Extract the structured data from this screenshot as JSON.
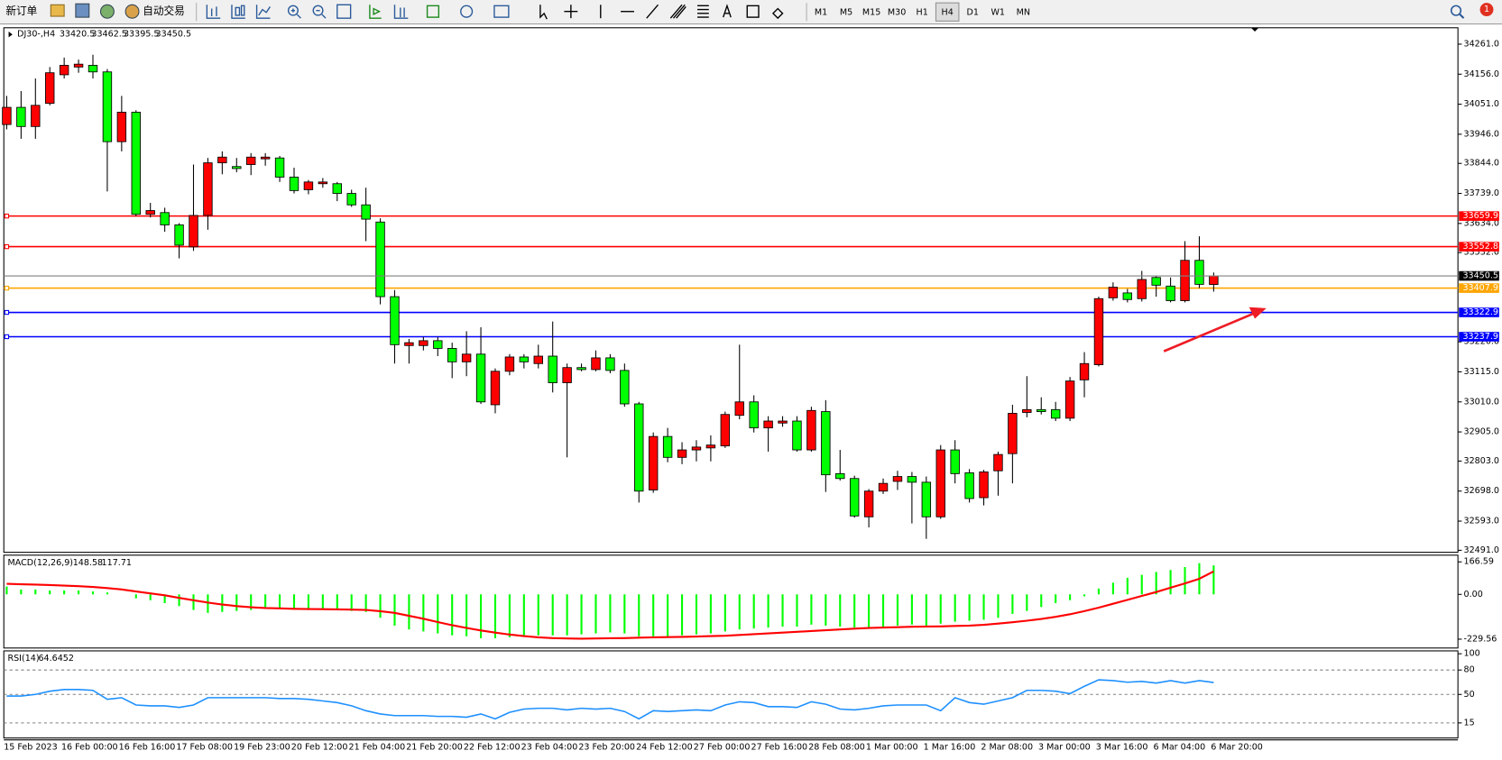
{
  "toolbar": {
    "new_order": "新订单",
    "auto_trading": "自动交易",
    "timeframes": [
      "M1",
      "M5",
      "M15",
      "M30",
      "H1",
      "H4",
      "D1",
      "W1",
      "MN"
    ],
    "active_timeframe": 5,
    "notifications": 1
  },
  "chart_data": [
    {
      "type": "candlestick",
      "title": "DJ30-,H4",
      "categories": [
        "15 Feb 2023",
        null,
        null,
        null,
        "16 Feb 00:00",
        null,
        null,
        null,
        "16 Feb 16:00",
        null,
        null,
        null,
        "17 Feb 08:00",
        null,
        null,
        null,
        "19 Feb 23:00",
        null,
        null,
        null,
        "20 Feb 12:00",
        null,
        null,
        null,
        "21 Feb 04:00",
        null,
        null,
        null,
        "21 Feb 20:00",
        null,
        null,
        null,
        "22 Feb 12:00",
        null,
        null,
        null,
        "23 Feb 04:00",
        null,
        null,
        null,
        "23 Feb 20:00",
        null,
        null,
        null,
        "24 Feb 12:00",
        null,
        null,
        null,
        "27 Feb 00:00",
        null,
        null,
        null,
        "27 Feb 16:00",
        null,
        null,
        null,
        "28 Feb 08:00",
        null,
        null,
        null,
        "1 Mar 00:00",
        null,
        null,
        null,
        "1 Mar 16:00",
        null,
        null,
        null,
        "2 Mar 08:00",
        null,
        null,
        null,
        "3 Mar 00:00",
        null,
        null,
        null,
        "3 Mar 16:00",
        null,
        null,
        null,
        "6 Mar 04:00",
        null,
        null,
        null,
        "6 Mar 20:00"
      ],
      "open": [
        33980,
        34040,
        33973,
        34054,
        34154,
        34181,
        34187,
        34164,
        33920,
        34023,
        33666,
        33672,
        33629,
        33552,
        33662,
        33846,
        33833,
        33840,
        33860,
        33863,
        33796,
        33752,
        33773,
        33773,
        33739,
        33699,
        33639,
        33378,
        33207,
        33207,
        33224,
        33197,
        33150,
        33177,
        33000,
        33117,
        33167,
        33144,
        33170,
        33077,
        33130,
        33123,
        33164,
        33120,
        33003,
        32702,
        32889,
        32816,
        32842,
        32849,
        32856,
        32963,
        33010,
        32919,
        32936,
        32943,
        32842,
        32976,
        32759,
        32742,
        32608,
        32698,
        32732,
        32749,
        32729,
        32608,
        32842,
        32762,
        32675,
        32769,
        32829,
        32973,
        32983,
        32983,
        32953,
        33087,
        33140,
        33374,
        33391,
        33371,
        33445,
        33415,
        33364,
        33505,
        33420.5
      ],
      "high": [
        34080,
        34097,
        34141,
        34181,
        34214,
        34207,
        34224,
        34174,
        34080,
        34030,
        33706,
        33689,
        33635,
        33840,
        33863,
        33886,
        33863,
        33880,
        33880,
        33870,
        33829,
        33786,
        33793,
        33779,
        33752,
        33759,
        33652,
        33401,
        33230,
        33237,
        33237,
        33217,
        33257,
        33271,
        33127,
        33177,
        33177,
        33210,
        33291,
        33144,
        33144,
        33190,
        33177,
        33144,
        33010,
        32903,
        32919,
        32869,
        32876,
        32893,
        32976,
        33210,
        33033,
        32960,
        32960,
        32960,
        32993,
        33016,
        32842,
        32752,
        32705,
        32742,
        32769,
        32765,
        32749,
        32859,
        32876,
        32775,
        32772,
        32836,
        33000,
        33100,
        33026,
        33010,
        33097,
        33184,
        33378,
        33428,
        33405,
        33468,
        33451,
        33445,
        33572,
        33589,
        33462.5
      ],
      "low": [
        33963,
        33930,
        33930,
        34047,
        34141,
        34161,
        34141,
        33746,
        33886,
        33659,
        33655,
        33605,
        33512,
        33538,
        33612,
        33806,
        33813,
        33803,
        33836,
        33779,
        33739,
        33736,
        33759,
        33712,
        33692,
        33572,
        33351,
        33144,
        33144,
        33190,
        33170,
        33093,
        33100,
        33003,
        32970,
        33103,
        33127,
        33127,
        33043,
        32816,
        33117,
        33117,
        33110,
        32993,
        32658,
        32692,
        32799,
        32792,
        32802,
        32802,
        32849,
        32949,
        32903,
        32836,
        32923,
        32836,
        32836,
        32695,
        32735,
        32605,
        32571,
        32688,
        32702,
        32585,
        32531,
        32601,
        32725,
        32658,
        32648,
        32682,
        32725,
        32956,
        32966,
        32943,
        32943,
        33026,
        33134,
        33364,
        33358,
        33361,
        33378,
        33358,
        33358,
        33408,
        33395.5
      ],
      "close": [
        34040,
        33973,
        34047,
        34161,
        34187,
        34191,
        34164,
        33920,
        34023,
        33666,
        33679,
        33629,
        33558,
        33662,
        33846,
        33866,
        33826,
        33866,
        33866,
        33796,
        33749,
        33779,
        33779,
        33739,
        33699,
        33649,
        33378,
        33210,
        33217,
        33224,
        33197,
        33150,
        33177,
        33010,
        33117,
        33167,
        33150,
        33170,
        33077,
        33130,
        33123,
        33164,
        33120,
        33003,
        32698,
        32889,
        32816,
        32842,
        32852,
        32859,
        32966,
        33010,
        32919,
        32943,
        32943,
        32842,
        32980,
        32755,
        32742,
        32611,
        32698,
        32725,
        32749,
        32729,
        32608,
        32842,
        32759,
        32672,
        32765,
        32826,
        32970,
        32983,
        32976,
        32953,
        33083,
        33144,
        33371,
        33411,
        33368,
        33438,
        33418,
        33364,
        33505,
        33421,
        33450.5
      ],
      "up_color": "#ff0000",
      "down_color": "#00ff00",
      "ylim": [
        32484,
        34315
      ],
      "yticks": [
        {
          "value": 34261,
          "label": "34261.0"
        },
        {
          "value": 34156,
          "label": "34156.0"
        },
        {
          "value": 34051,
          "label": "34051.0"
        },
        {
          "value": 33946,
          "label": "33946.0"
        },
        {
          "value": 33844,
          "label": "33844.0"
        },
        {
          "value": 33739,
          "label": "33739.0"
        },
        {
          "value": 33634,
          "label": "33634.0"
        },
        {
          "value": 33532,
          "label": "33532.0"
        },
        {
          "value": 33220,
          "label": "33220.0"
        },
        {
          "value": 33115,
          "label": "33115.0"
        },
        {
          "value": 33010,
          "label": "33010.0"
        },
        {
          "value": 32905,
          "label": "32905.0"
        },
        {
          "value": 32803,
          "label": "32803.0"
        },
        {
          "value": 32698,
          "label": "32698.0"
        },
        {
          "value": 32593,
          "label": "32593.0"
        },
        {
          "value": 32491,
          "label": "32491.0"
        }
      ],
      "hlines": [
        {
          "value": 33659.9,
          "color": "#ff0000"
        },
        {
          "value": 33552.8,
          "color": "#ff0000"
        },
        {
          "value": 33407.9,
          "color": "#ffa500"
        },
        {
          "value": 33322.9,
          "color": "#0000ff"
        },
        {
          "value": 33237.9,
          "color": "#0000ff"
        }
      ],
      "price_line_color": "#808080"
    },
    {
      "type": "macd",
      "title": "MACD(12,26,9)",
      "histogram": [
        40,
        25,
        25,
        20,
        20,
        20,
        15,
        10,
        0,
        -20,
        -30,
        -45,
        -60,
        -80,
        -95,
        -90,
        -85,
        -80,
        -75,
        -75,
        -78,
        -80,
        -80,
        -82,
        -85,
        -90,
        -120,
        -160,
        -180,
        -190,
        -200,
        -210,
        -215,
        -225,
        -225,
        -220,
        -215,
        -210,
        -210,
        -210,
        -205,
        -200,
        -195,
        -200,
        -215,
        -215,
        -215,
        -210,
        -205,
        -200,
        -190,
        -180,
        -175,
        -170,
        -165,
        -165,
        -155,
        -160,
        -165,
        -170,
        -170,
        -165,
        -160,
        -155,
        -160,
        -150,
        -140,
        -135,
        -130,
        -120,
        -100,
        -85,
        -65,
        -45,
        -30,
        -10,
        30,
        60,
        85,
        100,
        115,
        125,
        140,
        160,
        148.58
      ],
      "signal": [
        54,
        52,
        50,
        48,
        45,
        42,
        38,
        32,
        25,
        15,
        5,
        -5,
        -18,
        -30,
        -42,
        -52,
        -60,
        -66,
        -70,
        -72,
        -74,
        -75,
        -76,
        -77,
        -78,
        -80,
        -86,
        -95,
        -110,
        -125,
        -142,
        -158,
        -172,
        -185,
        -196,
        -206,
        -214,
        -220,
        -224,
        -226,
        -227,
        -226,
        -225,
        -224,
        -222,
        -220,
        -219,
        -218,
        -216,
        -214,
        -212,
        -208,
        -204,
        -200,
        -196,
        -192,
        -188,
        -184,
        -180,
        -176,
        -172,
        -170,
        -168,
        -166,
        -165,
        -164,
        -162,
        -160,
        -156,
        -150,
        -143,
        -135,
        -126,
        -115,
        -102,
        -86,
        -68,
        -48,
        -28,
        -8,
        12,
        34,
        56,
        80,
        117.71
      ],
      "histogram_color": "#00ff00",
      "signal_color": "#ff0000",
      "ylim": [
        -270,
        196
      ],
      "yticks": [
        {
          "value": 166.59,
          "label": "166.59"
        },
        {
          "value": 0,
          "label": "0.00"
        },
        {
          "value": -229.56,
          "label": "-229.56"
        }
      ]
    },
    {
      "type": "rsi",
      "title": "RSI(14)",
      "values": [
        48,
        48,
        50,
        54,
        56,
        56,
        55,
        44,
        46,
        37,
        36,
        36,
        34,
        37,
        46,
        46,
        46,
        46,
        46,
        45,
        45,
        44,
        42,
        40,
        36,
        30,
        26,
        24,
        24,
        24,
        23,
        23,
        22,
        26,
        20,
        28,
        32,
        33,
        33,
        31,
        33,
        32,
        33,
        29,
        20,
        30,
        29,
        30,
        31,
        30,
        37,
        41,
        40,
        35,
        35,
        34,
        41,
        38,
        32,
        31,
        33,
        36,
        37,
        37,
        37,
        30,
        46,
        40,
        38,
        42,
        46,
        55,
        55,
        54,
        51,
        60,
        68,
        67,
        65,
        66,
        64,
        67,
        64,
        67,
        64.6452
      ],
      "color": "#1e90ff",
      "ylim": [
        0,
        100
      ],
      "yticks": [
        100,
        80,
        50,
        15
      ]
    }
  ]
}
